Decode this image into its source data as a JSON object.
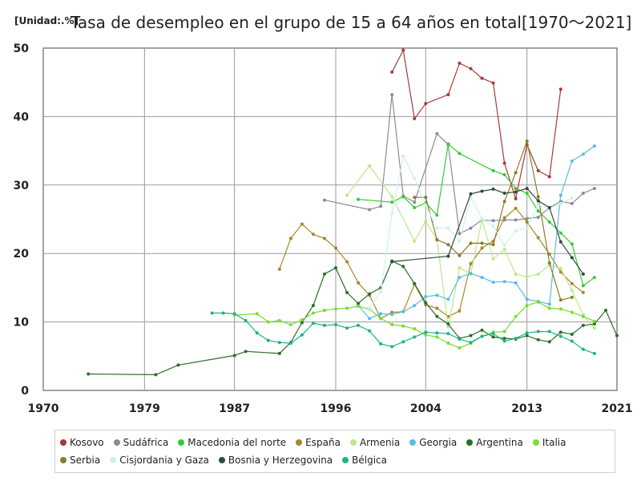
{
  "chart_data": {
    "type": "line",
    "title": "Tasa de desempleo en el grupo de 15 a 64 años en total[1970～2021]",
    "unit_label": "[Unidad:.%]",
    "xlabel": "",
    "ylabel": "",
    "xlim": [
      1970,
      2021
    ],
    "ylim": [
      0,
      50
    ],
    "x_ticks": [
      "1970",
      "1979",
      "1987",
      "1996",
      "2004",
      "2013",
      "2021"
    ],
    "y_ticks": [
      "0",
      "10",
      "20",
      "30",
      "40",
      "50"
    ],
    "grid": true,
    "legend_position": "bottom",
    "series": [
      {
        "name": "Kosovo",
        "color": "#a83a3a",
        "points": [
          [
            2001,
            46.5
          ],
          [
            2002,
            49.7
          ],
          [
            2003,
            39.7
          ],
          [
            2004,
            41.9
          ],
          [
            2006,
            43.2
          ],
          [
            2007,
            47.8
          ],
          [
            2008,
            47.0
          ],
          [
            2009,
            45.6
          ],
          [
            2010,
            44.9
          ],
          [
            2011,
            33.2
          ],
          [
            2012,
            28.0
          ],
          [
            2013,
            35.9
          ],
          [
            2014,
            32.1
          ],
          [
            2015,
            31.2
          ],
          [
            2016,
            44.0
          ]
        ]
      },
      {
        "name": "Sudáfrica",
        "color": "#8a8a9a",
        "points": [
          [
            1995,
            27.8
          ],
          [
            1999,
            26.4
          ],
          [
            2000,
            26.9
          ],
          [
            2001,
            43.2
          ],
          [
            2002,
            28.4
          ],
          [
            2003,
            27.5
          ],
          [
            2005,
            37.5
          ],
          [
            2006,
            35.9
          ],
          [
            2007,
            22.9
          ],
          [
            2008,
            23.7
          ],
          [
            2009,
            24.9
          ],
          [
            2010,
            24.8
          ],
          [
            2011,
            24.9
          ],
          [
            2012,
            24.9
          ],
          [
            2013,
            25.1
          ],
          [
            2014,
            25.3
          ],
          [
            2015,
            26.7
          ],
          [
            2016,
            27.6
          ],
          [
            2017,
            27.3
          ],
          [
            2018,
            28.8
          ],
          [
            2019,
            29.5
          ]
        ]
      },
      {
        "name": "Macedonia del norte",
        "color": "#33cc33",
        "points": [
          [
            1998,
            27.9
          ],
          [
            2001,
            27.5
          ],
          [
            2002,
            28.3
          ],
          [
            2003,
            26.7
          ],
          [
            2004,
            27.4
          ],
          [
            2005,
            25.6
          ],
          [
            2006,
            36.0
          ],
          [
            2007,
            34.6
          ],
          [
            2010,
            32.1
          ],
          [
            2011,
            31.5
          ],
          [
            2012,
            29.5
          ],
          [
            2013,
            28.8
          ],
          [
            2014,
            26.2
          ],
          [
            2015,
            24.6
          ],
          [
            2016,
            23.0
          ],
          [
            2017,
            21.4
          ],
          [
            2018,
            15.3
          ],
          [
            2019,
            16.5
          ]
        ]
      },
      {
        "name": "España",
        "color": "#a8862a",
        "points": [
          [
            1991,
            17.7
          ],
          [
            1992,
            22.2
          ],
          [
            1993,
            24.3
          ],
          [
            1994,
            22.8
          ],
          [
            1995,
            22.2
          ],
          [
            1996,
            20.8
          ],
          [
            1997,
            18.8
          ],
          [
            1998,
            15.7
          ],
          [
            1999,
            13.9
          ],
          [
            2000,
            10.5
          ],
          [
            2001,
            11.4
          ],
          [
            2002,
            11.5
          ],
          [
            2003,
            15.5
          ],
          [
            2004,
            12.5
          ],
          [
            2005,
            12.0
          ],
          [
            2006,
            10.8
          ],
          [
            2007,
            11.6
          ],
          [
            2008,
            18.5
          ],
          [
            2009,
            20.8
          ],
          [
            2010,
            21.8
          ],
          [
            2011,
            25.2
          ],
          [
            2012,
            26.6
          ],
          [
            2013,
            24.6
          ],
          [
            2014,
            22.3
          ],
          [
            2015,
            19.9
          ],
          [
            2016,
            17.3
          ],
          [
            2017,
            15.6
          ],
          [
            2018,
            14.3
          ]
        ]
      },
      {
        "name": "Armenia",
        "color": "#bde88a",
        "points": [
          [
            1997,
            28.5
          ],
          [
            1999,
            32.8
          ],
          [
            2001,
            28.3
          ],
          [
            2003,
            21.8
          ],
          [
            2004,
            24.7
          ],
          [
            2005,
            22.0
          ],
          [
            2006,
            9.3
          ],
          [
            2007,
            17.9
          ],
          [
            2008,
            17.0
          ],
          [
            2009,
            24.9
          ],
          [
            2010,
            19.2
          ],
          [
            2011,
            20.6
          ],
          [
            2012,
            17.0
          ],
          [
            2013,
            16.6
          ],
          [
            2014,
            17.0
          ],
          [
            2015,
            18.3
          ],
          [
            2016,
            17.8
          ],
          [
            2017,
            14.6
          ],
          [
            2018,
            11.0
          ],
          [
            2019,
            9.1
          ]
        ]
      },
      {
        "name": "Georgia",
        "color": "#5bbde0",
        "points": [
          [
            1998,
            12.4
          ],
          [
            1999,
            10.5
          ],
          [
            2000,
            11.2
          ],
          [
            2001,
            11.1
          ],
          [
            2002,
            11.5
          ],
          [
            2003,
            12.4
          ],
          [
            2004,
            13.7
          ],
          [
            2005,
            13.9
          ],
          [
            2006,
            13.3
          ],
          [
            2007,
            16.5
          ],
          [
            2008,
            17.1
          ],
          [
            2009,
            16.5
          ],
          [
            2010,
            15.8
          ],
          [
            2011,
            15.9
          ],
          [
            2012,
            15.7
          ],
          [
            2013,
            13.3
          ],
          [
            2014,
            13.0
          ],
          [
            2015,
            12.6
          ],
          [
            2016,
            28.5
          ],
          [
            2017,
            33.5
          ],
          [
            2018,
            34.5
          ],
          [
            2019,
            35.7
          ]
        ]
      },
      {
        "name": "Argentina",
        "color": "#2a6e2a",
        "points": [
          [
            1974,
            2.4
          ],
          [
            1980,
            2.3
          ],
          [
            1982,
            3.7
          ],
          [
            1987,
            5.1
          ],
          [
            1988,
            5.7
          ],
          [
            1991,
            5.4
          ],
          [
            1992,
            7.0
          ],
          [
            1993,
            9.9
          ],
          [
            1994,
            12.4
          ],
          [
            1995,
            17.0
          ],
          [
            1996,
            17.9
          ],
          [
            1997,
            14.3
          ],
          [
            1998,
            12.7
          ],
          [
            1999,
            14.1
          ],
          [
            2000,
            15.0
          ],
          [
            2001,
            18.9
          ],
          [
            2002,
            18.1
          ],
          [
            2003,
            15.6
          ],
          [
            2004,
            12.8
          ],
          [
            2005,
            10.8
          ],
          [
            2006,
            9.7
          ],
          [
            2007,
            7.6
          ],
          [
            2008,
            8.0
          ],
          [
            2009,
            8.8
          ],
          [
            2010,
            7.8
          ],
          [
            2011,
            7.6
          ],
          [
            2012,
            7.5
          ],
          [
            2013,
            8.0
          ],
          [
            2014,
            7.4
          ],
          [
            2015,
            7.1
          ],
          [
            2016,
            8.5
          ],
          [
            2017,
            8.2
          ],
          [
            2018,
            9.5
          ],
          [
            2019,
            9.7
          ],
          [
            2020,
            11.7
          ],
          [
            2021,
            8.0
          ]
        ]
      },
      {
        "name": "Italia",
        "color": "#77dd33",
        "points": [
          [
            1987,
            11.0
          ],
          [
            1989,
            11.2
          ],
          [
            1990,
            10.0
          ],
          [
            1991,
            10.2
          ],
          [
            1992,
            9.6
          ],
          [
            1993,
            10.3
          ],
          [
            1994,
            11.3
          ],
          [
            1995,
            11.7
          ],
          [
            1996,
            11.9
          ],
          [
            1997,
            12.0
          ],
          [
            1998,
            12.3
          ],
          [
            1999,
            11.9
          ],
          [
            2000,
            10.5
          ],
          [
            2001,
            9.6
          ],
          [
            2002,
            9.4
          ],
          [
            2003,
            9.0
          ],
          [
            2004,
            8.1
          ],
          [
            2005,
            7.8
          ],
          [
            2006,
            6.9
          ],
          [
            2007,
            6.2
          ],
          [
            2008,
            6.9
          ],
          [
            2009,
            7.9
          ],
          [
            2010,
            8.5
          ],
          [
            2011,
            8.6
          ],
          [
            2012,
            10.8
          ],
          [
            2013,
            12.4
          ],
          [
            2014,
            12.9
          ],
          [
            2015,
            12.0
          ],
          [
            2016,
            11.9
          ],
          [
            2017,
            11.4
          ],
          [
            2018,
            10.8
          ],
          [
            2019,
            10.1
          ]
        ]
      },
      {
        "name": "Serbia",
        "color": "#8a7a2a",
        "points": [
          [
            2003,
            28.2
          ],
          [
            2004,
            28.2
          ],
          [
            2005,
            22.0
          ],
          [
            2006,
            21.3
          ],
          [
            2007,
            19.7
          ],
          [
            2008,
            21.5
          ],
          [
            2009,
            21.5
          ],
          [
            2010,
            21.3
          ],
          [
            2011,
            27.6
          ],
          [
            2012,
            31.8
          ],
          [
            2013,
            36.4
          ],
          [
            2014,
            28.3
          ],
          [
            2015,
            18.6
          ],
          [
            2016,
            13.2
          ],
          [
            2017,
            13.6
          ]
        ]
      },
      {
        "name": "Cisjordania y Gaza",
        "color": "#ccf2e6",
        "points": [
          [
            1999,
            12.0
          ],
          [
            2000,
            14.4
          ],
          [
            2001,
            25.9
          ],
          [
            2002,
            34.2
          ],
          [
            2003,
            31.0
          ],
          [
            2004,
            27.0
          ],
          [
            2005,
            23.7
          ],
          [
            2006,
            23.7
          ],
          [
            2007,
            21.8
          ],
          [
            2008,
            28.2
          ],
          [
            2009,
            25.1
          ],
          [
            2010,
            24.0
          ],
          [
            2011,
            21.2
          ],
          [
            2012,
            23.3
          ],
          [
            2013,
            23.7
          ],
          [
            2014,
            27.1
          ],
          [
            2015,
            26.5
          ],
          [
            2016,
            27.3
          ],
          [
            2017,
            28.1
          ]
        ]
      },
      {
        "name": "Bosnia y Herzegovina",
        "color": "#2e4a3a",
        "points": [
          [
            2001,
            18.8
          ],
          [
            2006,
            19.6
          ],
          [
            2008,
            28.7
          ],
          [
            2009,
            29.1
          ],
          [
            2010,
            29.4
          ],
          [
            2011,
            28.8
          ],
          [
            2012,
            29.0
          ],
          [
            2013,
            29.5
          ],
          [
            2014,
            27.7
          ],
          [
            2015,
            26.7
          ],
          [
            2016,
            21.7
          ],
          [
            2017,
            19.4
          ],
          [
            2018,
            17.0
          ]
        ]
      },
      {
        "name": "Bélgica",
        "color": "#1db386",
        "points": [
          [
            1985,
            11.3
          ],
          [
            1986,
            11.3
          ],
          [
            1987,
            11.2
          ],
          [
            1988,
            10.2
          ],
          [
            1989,
            8.4
          ],
          [
            1990,
            7.3
          ],
          [
            1991,
            7.0
          ],
          [
            1992,
            6.9
          ],
          [
            1993,
            8.1
          ],
          [
            1994,
            9.8
          ],
          [
            1995,
            9.5
          ],
          [
            1996,
            9.6
          ],
          [
            1997,
            9.1
          ],
          [
            1998,
            9.5
          ],
          [
            1999,
            8.7
          ],
          [
            2000,
            6.8
          ],
          [
            2001,
            6.4
          ],
          [
            2002,
            7.1
          ],
          [
            2003,
            7.8
          ],
          [
            2004,
            8.5
          ],
          [
            2005,
            8.4
          ],
          [
            2006,
            8.3
          ],
          [
            2007,
            7.5
          ],
          [
            2008,
            7.0
          ],
          [
            2009,
            7.9
          ],
          [
            2010,
            8.3
          ],
          [
            2011,
            7.2
          ],
          [
            2012,
            7.6
          ],
          [
            2013,
            8.4
          ],
          [
            2014,
            8.6
          ],
          [
            2015,
            8.6
          ],
          [
            2016,
            7.9
          ],
          [
            2017,
            7.2
          ],
          [
            2018,
            6.0
          ],
          [
            2019,
            5.4
          ]
        ]
      }
    ]
  }
}
